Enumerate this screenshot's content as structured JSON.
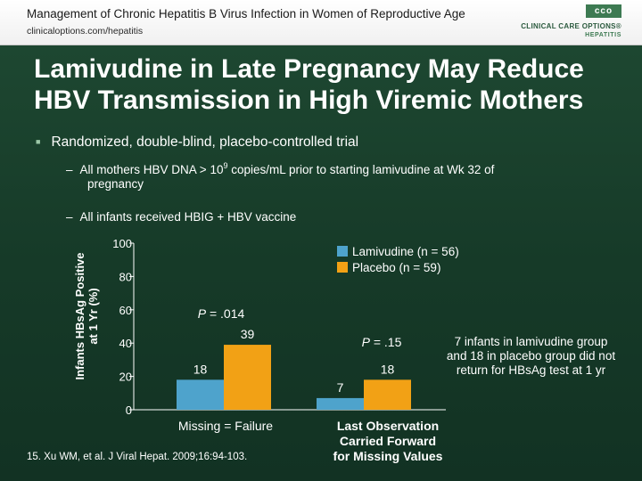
{
  "header": {
    "title": "Management of Chronic Hepatitis B Virus Infection in Women of Reproductive Age",
    "url": "clinicaloptions.com/hepatitis",
    "logo_box": "cco",
    "logo_line1": "CLINICAL CARE OPTIONS®",
    "logo_line2": "HEPATITIS"
  },
  "slide": {
    "title_line1": "Lamivudine in Late Pregnancy May Reduce",
    "title_line2": "HBV Transmission in High Viremic Mothers",
    "bullet": "Randomized, double-blind, placebo-controlled trial",
    "sub1_a": "All mothers HBV DNA > 10",
    "sub1_sup": "9",
    "sub1_b": " copies/mL prior to starting lamivudine at Wk 32 of",
    "sub1_c": "pregnancy",
    "sub2": "All infants received HBIG + HBV vaccine",
    "dash": "–",
    "note": "7 infants in lamivudine group and 18 in placebo group did not return for HBsAg test at 1 yr",
    "citation": "15. Xu WM, et al. J Viral Hepat. 2009;16:94-103."
  },
  "colors": {
    "lamivudine": "#4ea3cc",
    "placebo": "#f2a115",
    "background": "#1a4430"
  },
  "chart_data": {
    "type": "bar",
    "ylabel_line1": "Infants HBsAg Positive",
    "ylabel_line2": "at 1 Yr (%)",
    "ylim": [
      0,
      100
    ],
    "yticks": [
      0,
      20,
      40,
      60,
      80,
      100
    ],
    "categories": [
      "Missing = Failure",
      "Last Observation Carried Forward for Missing Values"
    ],
    "category_lines": [
      [
        "Missing = Failure"
      ],
      [
        "Last Observation",
        "Carried Forward",
        "for Missing Values"
      ]
    ],
    "series": [
      {
        "name": "Lamivudine (n = 56)",
        "values": [
          18,
          7
        ]
      },
      {
        "name": "Placebo (n = 59)",
        "values": [
          39,
          18
        ]
      }
    ],
    "p_values": [
      "P = .014",
      "P = .15"
    ],
    "legend_position": "top-right",
    "grid": false
  }
}
